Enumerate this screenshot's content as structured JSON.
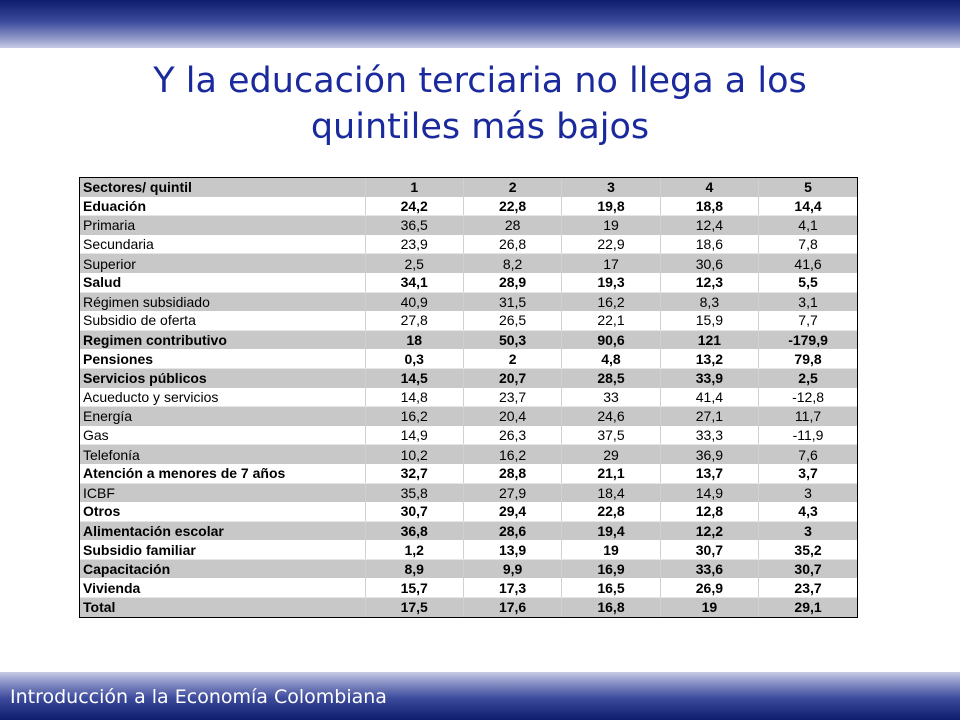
{
  "title_lines": [
    "Y la educación terciaria no llega a los",
    "quintiles más bajos"
  ],
  "footer": "Introducción a la Economía Colombiana",
  "table": {
    "header": [
      "Sectores/ quintil",
      "1",
      "2",
      "3",
      "4",
      "5"
    ],
    "rows": [
      {
        "label": "Eduación",
        "values": [
          "24,2",
          "22,8",
          "19,8",
          "18,8",
          "14,4"
        ],
        "bold": true
      },
      {
        "label": "Primaria",
        "values": [
          "36,5",
          "28",
          "19",
          "12,4",
          "4,1"
        ],
        "bold": false
      },
      {
        "label": "Secundaria",
        "values": [
          "23,9",
          "26,8",
          "22,9",
          "18,6",
          "7,8"
        ],
        "bold": false
      },
      {
        "label": "Superior",
        "values": [
          "2,5",
          "8,2",
          "17",
          "30,6",
          "41,6"
        ],
        "bold": false
      },
      {
        "label": "Salud",
        "values": [
          "34,1",
          "28,9",
          "19,3",
          "12,3",
          "5,5"
        ],
        "bold": true
      },
      {
        "label": "Régimen subsidiado",
        "values": [
          "40,9",
          "31,5",
          "16,2",
          "8,3",
          "3,1"
        ],
        "bold": false
      },
      {
        "label": "Subsidio de oferta",
        "values": [
          "27,8",
          "26,5",
          "22,1",
          "15,9",
          "7,7"
        ],
        "bold": false
      },
      {
        "label": "Regimen contributivo",
        "values": [
          "18",
          "50,3",
          "90,6",
          "121",
          "-179,9"
        ],
        "bold": true
      },
      {
        "label": "Pensiones",
        "values": [
          "0,3",
          "2",
          "4,8",
          "13,2",
          "79,8"
        ],
        "bold": true
      },
      {
        "label": "Servicios públicos",
        "values": [
          "14,5",
          "20,7",
          "28,5",
          "33,9",
          "2,5"
        ],
        "bold": true
      },
      {
        "label": "Acueducto y servicios",
        "values": [
          "14,8",
          "23,7",
          "33",
          "41,4",
          "-12,8"
        ],
        "bold": false
      },
      {
        "label": "Energía",
        "values": [
          "16,2",
          "20,4",
          "24,6",
          "27,1",
          "11,7"
        ],
        "bold": false
      },
      {
        "label": "Gas",
        "values": [
          "14,9",
          "26,3",
          "37,5",
          "33,3",
          "-11,9"
        ],
        "bold": false
      },
      {
        "label": "Telefonía",
        "values": [
          "10,2",
          "16,2",
          "29",
          "36,9",
          "7,6"
        ],
        "bold": false
      },
      {
        "label": "Atención a menores de 7 años",
        "values": [
          "32,7",
          "28,8",
          "21,1",
          "13,7",
          "3,7"
        ],
        "bold": true
      },
      {
        "label": "ICBF",
        "values": [
          "35,8",
          "27,9",
          "18,4",
          "14,9",
          "3"
        ],
        "bold": false
      },
      {
        "label": "Otros",
        "values": [
          "30,7",
          "29,4",
          "22,8",
          "12,8",
          "4,3"
        ],
        "bold": true
      },
      {
        "label": "Alimentación escolar",
        "values": [
          "36,8",
          "28,6",
          "19,4",
          "12,2",
          "3"
        ],
        "bold": true
      },
      {
        "label": "Subsidio familiar",
        "values": [
          "1,2",
          "13,9",
          "19",
          "30,7",
          "35,2"
        ],
        "bold": true
      },
      {
        "label": "Capacitación",
        "values": [
          "8,9",
          "9,9",
          "16,9",
          "33,6",
          "30,7"
        ],
        "bold": true
      },
      {
        "label": "Vivienda",
        "values": [
          "15,7",
          "17,3",
          "16,5",
          "26,9",
          "23,7"
        ],
        "bold": true
      },
      {
        "label": "Total",
        "values": [
          "17,5",
          "17,6",
          "16,8",
          "19",
          "29,1"
        ],
        "bold": true
      }
    ]
  }
}
